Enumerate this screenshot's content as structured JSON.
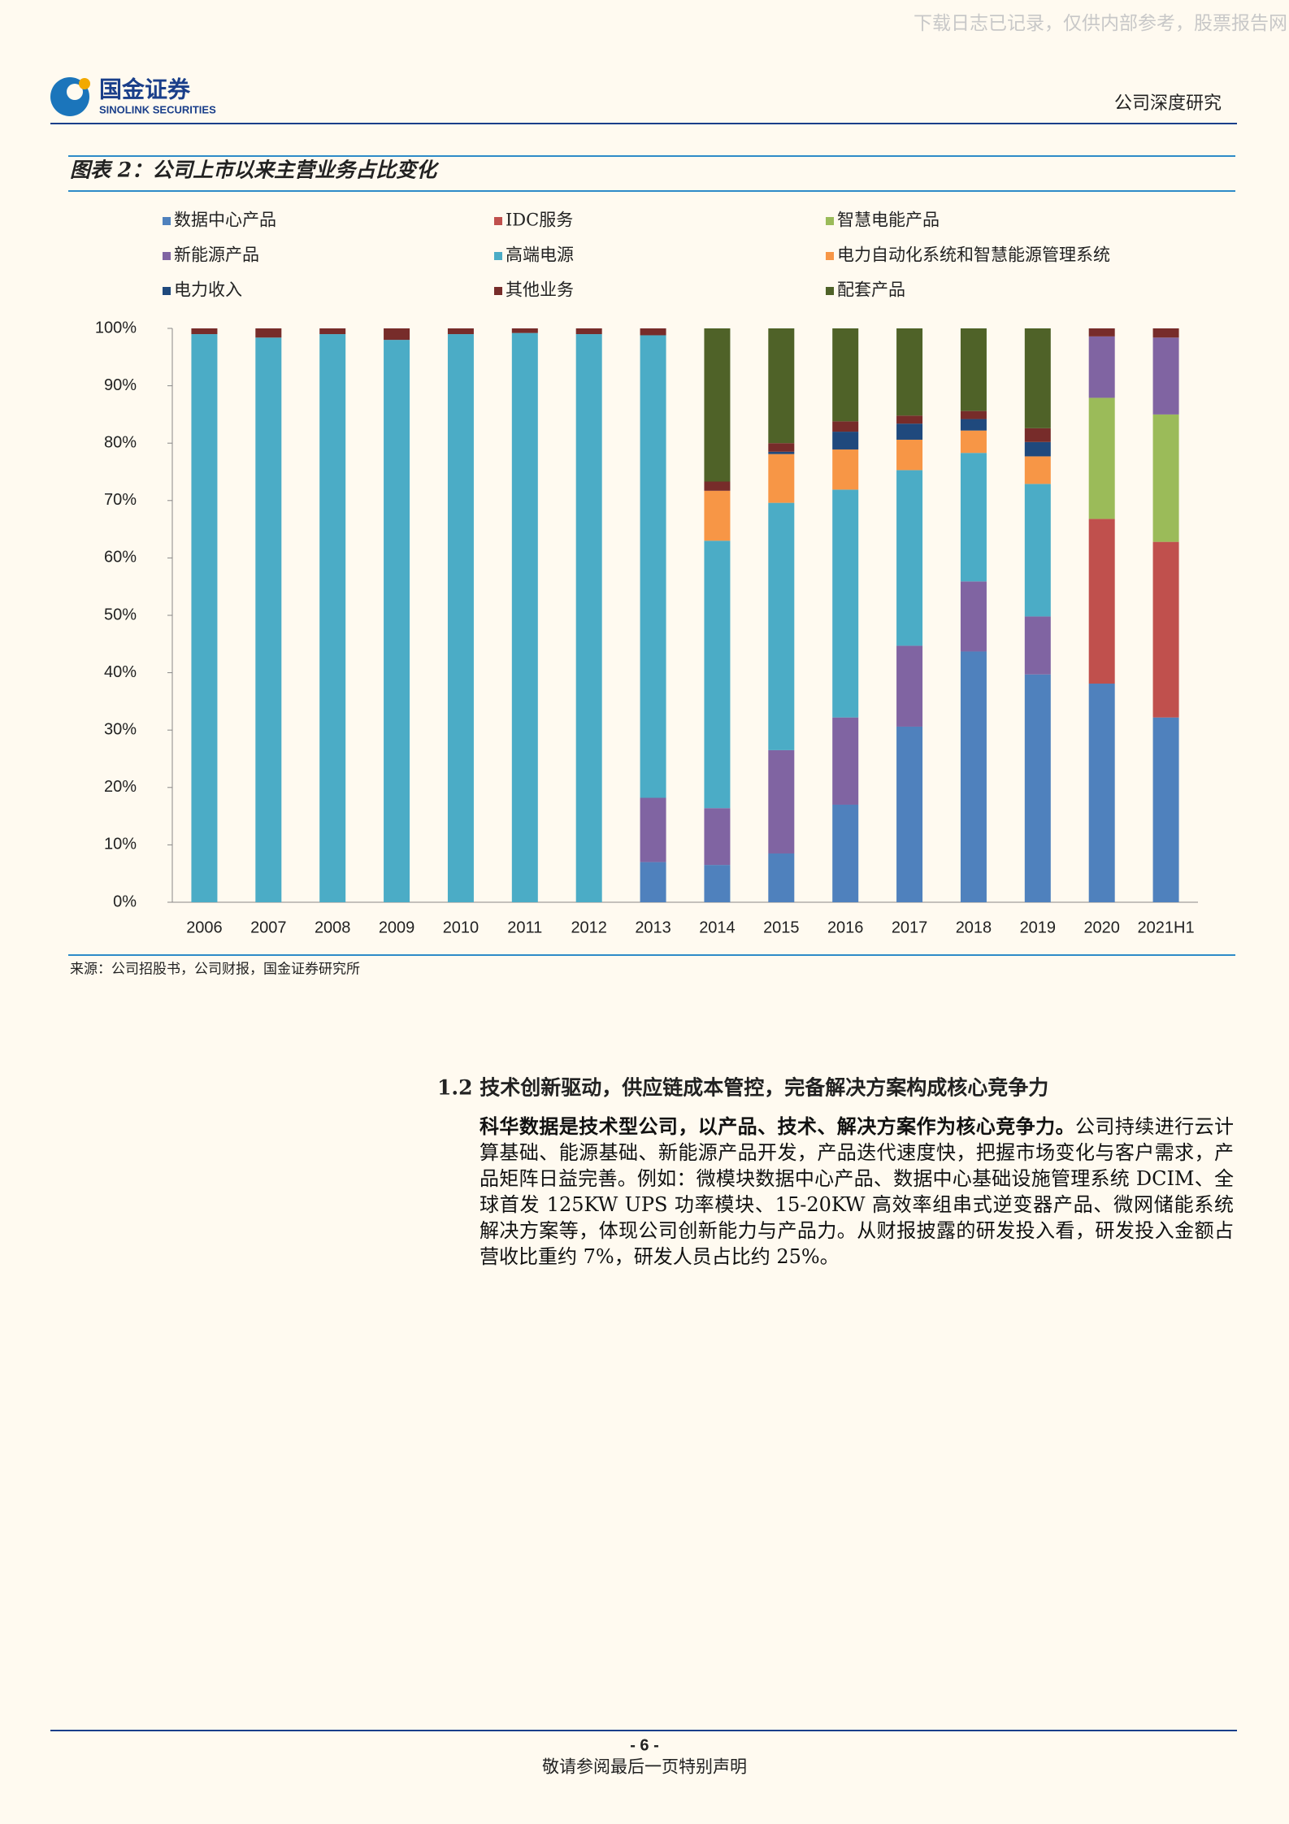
{
  "header": {
    "watermark": "下载日志已记录，仅供内部参考，股票报告网",
    "logo_cn": "国金证券",
    "logo_en": "SINOLINK SECURITIES",
    "report_type": "公司深度研究"
  },
  "chart_data": {
    "type": "bar",
    "stacked": true,
    "title": "图表 2：公司上市以来主营业务占比变化",
    "categories": [
      "2006",
      "2007",
      "2008",
      "2009",
      "2010",
      "2011",
      "2012",
      "2013",
      "2014",
      "2015",
      "2016",
      "2017",
      "2018",
      "2019",
      "2020",
      "2021H1"
    ],
    "series": [
      {
        "name": "数据中心产品",
        "color": "#4f81bd",
        "values": [
          null,
          null,
          null,
          null,
          null,
          null,
          null,
          7,
          6.5,
          8.5,
          17,
          30.6,
          43.7,
          39.7,
          38.1,
          32.2
        ]
      },
      {
        "name": "IDC服务",
        "color": "#c0504d",
        "values": [
          null,
          null,
          null,
          null,
          null,
          null,
          null,
          null,
          null,
          null,
          null,
          null,
          null,
          null,
          28.7,
          30.6
        ]
      },
      {
        "name": "智慧电能产品",
        "color": "#9bbb59",
        "values": [
          null,
          null,
          null,
          null,
          null,
          null,
          null,
          null,
          null,
          null,
          null,
          null,
          null,
          null,
          21.1,
          22.2
        ]
      },
      {
        "name": "新能源产品",
        "color": "#8064a2",
        "values": [
          null,
          null,
          null,
          null,
          null,
          null,
          null,
          11.2,
          9.9,
          18,
          15.2,
          14.1,
          12.2,
          10.1,
          10.7,
          13.4
        ]
      },
      {
        "name": "高端电源",
        "color": "#4bacc6",
        "values": [
          99,
          98.4,
          99,
          98,
          99,
          99.2,
          99,
          80.6,
          46.6,
          43.1,
          39.7,
          30.6,
          22.4,
          23.1,
          null,
          null
        ]
      },
      {
        "name": "电力自动化系统和智慧能源管理系统",
        "color": "#f79646",
        "values": [
          null,
          null,
          null,
          null,
          null,
          null,
          null,
          null,
          8.7,
          8.5,
          7,
          5.3,
          3.9,
          4.8,
          null,
          null
        ]
      },
      {
        "name": "电力收入",
        "color": "#1f497d",
        "values": [
          null,
          null,
          null,
          null,
          null,
          null,
          null,
          null,
          null,
          0.4,
          3.1,
          2.8,
          2,
          2.5,
          null,
          null
        ]
      },
      {
        "name": "其他业务",
        "color": "#772c2a",
        "values": [
          1,
          1.6,
          1,
          2,
          1,
          0.8,
          1,
          1.2,
          1.6,
          1.5,
          1.8,
          1.4,
          1.4,
          2.4,
          1.4,
          1.6
        ]
      },
      {
        "name": "配套产品",
        "color": "#4f6228",
        "values": [
          null,
          null,
          null,
          null,
          null,
          null,
          null,
          null,
          26.7,
          20,
          16.2,
          15.2,
          14.4,
          17.4,
          null,
          null
        ]
      }
    ],
    "ylim": [
      0,
      100
    ],
    "yticks": [
      {
        "value": 0,
        "label": "0%"
      },
      {
        "value": 10,
        "label": "10%"
      },
      {
        "value": 20,
        "label": "20%"
      },
      {
        "value": 30,
        "label": "30%"
      },
      {
        "value": 40,
        "label": "40%"
      },
      {
        "value": 50,
        "label": "50%"
      },
      {
        "value": 60,
        "label": "60%"
      },
      {
        "value": 70,
        "label": "70%"
      },
      {
        "value": 80,
        "label": "80%"
      },
      {
        "value": 90,
        "label": "90%"
      },
      {
        "value": 100,
        "label": "100%"
      }
    ],
    "legend": "top",
    "source": "来源：公司招股书，公司财报，国金证券研究所"
  },
  "section": {
    "heading": "1.2 技术创新驱动，供应链成本管控，完备解决方案构成核心竞争力",
    "lead": "科华数据是技术型公司，以产品、技术、解决方案作为核心竞争力。",
    "body": "公司持续进行云计算基础、能源基础、新能源产品开发，产品迭代速度快，把握市场变化与客户需求，产品矩阵日益完善。例如：微模块数据中心产品、数据中心基础设施管理系统 DCIM、全球首发 125KW UPS 功率模块、15-20KW 高效率组串式逆变器产品、微网储能系统解决方案等，体现公司创新能力与产品力。从财报披露的研发投入看，研发投入金额占营收比重约 7%，研发人员占比约 25%。"
  },
  "footer": {
    "page": "- 6 -",
    "disclaimer": "敬请参阅最后一页特别声明"
  }
}
